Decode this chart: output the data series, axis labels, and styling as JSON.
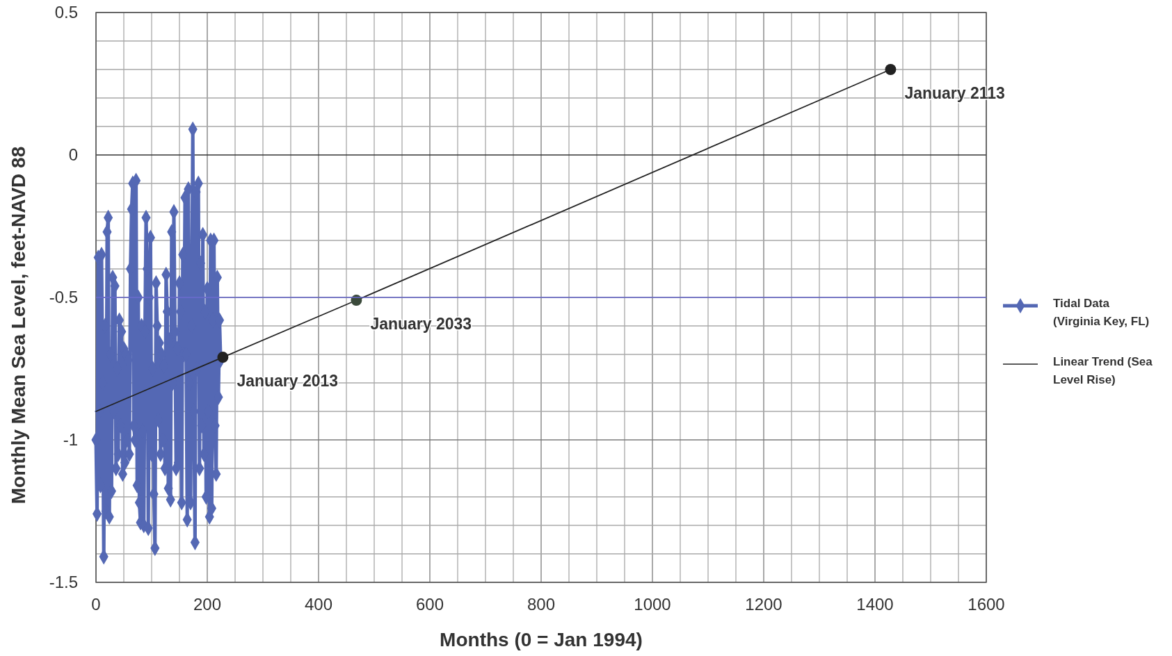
{
  "chart_data": {
    "type": "line",
    "xlabel": "Months (0 = Jan 1994)",
    "ylabel": "Monthly Mean Sea Level, feet-NAVD 88",
    "xlim": [
      0,
      1600
    ],
    "ylim": [
      -1.5,
      0.5
    ],
    "xticks": [
      0,
      {
        "value": 50,
        "label": null
      },
      200,
      {
        "value": 100,
        "label": null
      },
      {
        "value": 150,
        "label": null
      },
      {
        "value": 250,
        "label": null
      },
      {
        "value": 300,
        "label": null
      },
      {
        "value": 350,
        "label": null
      },
      400,
      {
        "value": 450,
        "label": null
      },
      {
        "value": 500,
        "label": null
      },
      {
        "value": 550,
        "label": null
      },
      600,
      {
        "value": 650,
        "label": null
      },
      {
        "value": 700,
        "label": null
      },
      {
        "value": 750,
        "label": null
      },
      800,
      {
        "value": 850,
        "label": null
      },
      {
        "value": 900,
        "label": null
      },
      {
        "value": 950,
        "label": null
      },
      1000,
      {
        "value": 1050,
        "label": null
      },
      {
        "value": 1100,
        "label": null
      },
      {
        "value": 1150,
        "label": null
      },
      1200,
      {
        "value": 1250,
        "label": null
      },
      {
        "value": 1300,
        "label": null
      },
      {
        "value": 1350,
        "label": null
      },
      1400,
      {
        "value": 1450,
        "label": null
      },
      {
        "value": 1500,
        "label": null
      },
      {
        "value": 1550,
        "label": null
      },
      1600
    ],
    "yticks": [
      -1.5,
      {
        "value": -1.4,
        "label": null
      },
      {
        "value": -1.3,
        "label": null
      },
      {
        "value": -1.2,
        "label": null
      },
      {
        "value": -1.1,
        "label": null
      },
      -1,
      {
        "value": -0.9,
        "label": null
      },
      {
        "value": -0.8,
        "label": null
      },
      {
        "value": -0.7,
        "label": null
      },
      {
        "value": -0.6,
        "label": null
      },
      -0.5,
      {
        "value": -0.4,
        "label": null
      },
      {
        "value": -0.3,
        "label": null
      },
      {
        "value": -0.2,
        "label": null
      },
      {
        "value": -0.1,
        "label": null
      },
      0,
      {
        "value": 0.1,
        "label": null
      },
      {
        "value": 0.2,
        "label": null
      },
      {
        "value": 0.3,
        "label": null
      },
      {
        "value": 0.4,
        "label": null
      },
      0.5
    ],
    "grid": true,
    "legend": "right",
    "ref_lines": [
      {
        "axis": "y",
        "value": -0.5,
        "color": "#6b6bd0"
      }
    ],
    "series": [
      {
        "name": "Tidal Data (Virginia Key, FL)",
        "color": "#5468b4",
        "marker": "diamond",
        "x": [
          0,
          2,
          4,
          6,
          8,
          10,
          12,
          14,
          16,
          18,
          20,
          22,
          24,
          26,
          28,
          30,
          32,
          34,
          36,
          38,
          40,
          42,
          44,
          46,
          48,
          50,
          52,
          54,
          56,
          58,
          60,
          62,
          64,
          66,
          68,
          70,
          72,
          74,
          76,
          78,
          80,
          82,
          84,
          86,
          88,
          90,
          92,
          94,
          96,
          98,
          100,
          102,
          104,
          106,
          108,
          110,
          112,
          114,
          116,
          118,
          120,
          122,
          124,
          126,
          128,
          130,
          132,
          134,
          136,
          138,
          140,
          142,
          144,
          146,
          148,
          150,
          152,
          154,
          156,
          158,
          160,
          162,
          164,
          166,
          168,
          170,
          172,
          174,
          176,
          178,
          180,
          182,
          184,
          186,
          188,
          190,
          192,
          194,
          196,
          198,
          200,
          202,
          204,
          206,
          208,
          210,
          212,
          214,
          216,
          218,
          220,
          222,
          224
        ],
        "values": [
          -1.0,
          -1.26,
          -0.36,
          -0.9,
          -1.16,
          -0.35,
          -0.8,
          -1.41,
          -0.6,
          -1.25,
          -0.27,
          -0.22,
          -1.27,
          -0.7,
          -1.18,
          -0.43,
          -0.9,
          -0.46,
          -1.1,
          -0.75,
          -1.05,
          -0.58,
          -0.95,
          -0.62,
          -1.12,
          -0.68,
          -1.08,
          -0.7,
          -1.0,
          -0.72,
          -1.05,
          -0.4,
          -0.19,
          -0.1,
          -0.95,
          -1.0,
          -0.09,
          -1.16,
          -0.5,
          -1.22,
          -1.29,
          -0.6,
          -0.97,
          -1.3,
          -0.62,
          -0.22,
          -0.4,
          -1.31,
          -0.5,
          -0.29,
          -1.05,
          -0.75,
          -1.19,
          -1.38,
          -0.45,
          -0.6,
          -0.93,
          -0.66,
          -1.05,
          -0.7,
          -1.0,
          -0.74,
          -1.1,
          -0.42,
          -0.55,
          -1.17,
          -0.65,
          -1.21,
          -0.27,
          -0.8,
          -0.2,
          -0.62,
          -1.1,
          -0.68,
          -1.08,
          -0.45,
          -0.55,
          -1.22,
          -0.35,
          -0.7,
          -0.15,
          -0.7,
          -1.28,
          -0.12,
          -0.8,
          -1.22,
          -0.6,
          0.09,
          -0.9,
          -1.36,
          -0.13,
          -0.75,
          -0.1,
          -1.1,
          -0.38,
          -0.95,
          -0.28,
          -1.05,
          -0.55,
          -1.2,
          -0.47,
          -0.9,
          -1.27,
          -0.3,
          -1.24,
          -0.58,
          -0.3,
          -0.95,
          -1.12,
          -0.43,
          -0.85,
          -0.58,
          -0.72
        ]
      },
      {
        "name": "Linear Trend (Sea Level Rise)",
        "color": "#222222",
        "marker": "none",
        "x": [
          0,
          228,
          468,
          1428
        ],
        "values": [
          -0.9,
          -0.71,
          -0.51,
          0.3
        ]
      },
      {
        "type": "scatter",
        "marker": "circle",
        "colors": [
          "#222222",
          "#3b4a3b",
          "#222222"
        ],
        "x": [
          228,
          468,
          1428
        ],
        "values": [
          -0.71,
          -0.51,
          0.3
        ]
      }
    ],
    "annotations": [
      {
        "text": "January 2013",
        "x": 228,
        "y": -0.71
      },
      {
        "text": "January 2033",
        "x": 468,
        "y": -0.51
      },
      {
        "text": "January 2113",
        "x": 1428,
        "y": 0.3
      }
    ]
  }
}
